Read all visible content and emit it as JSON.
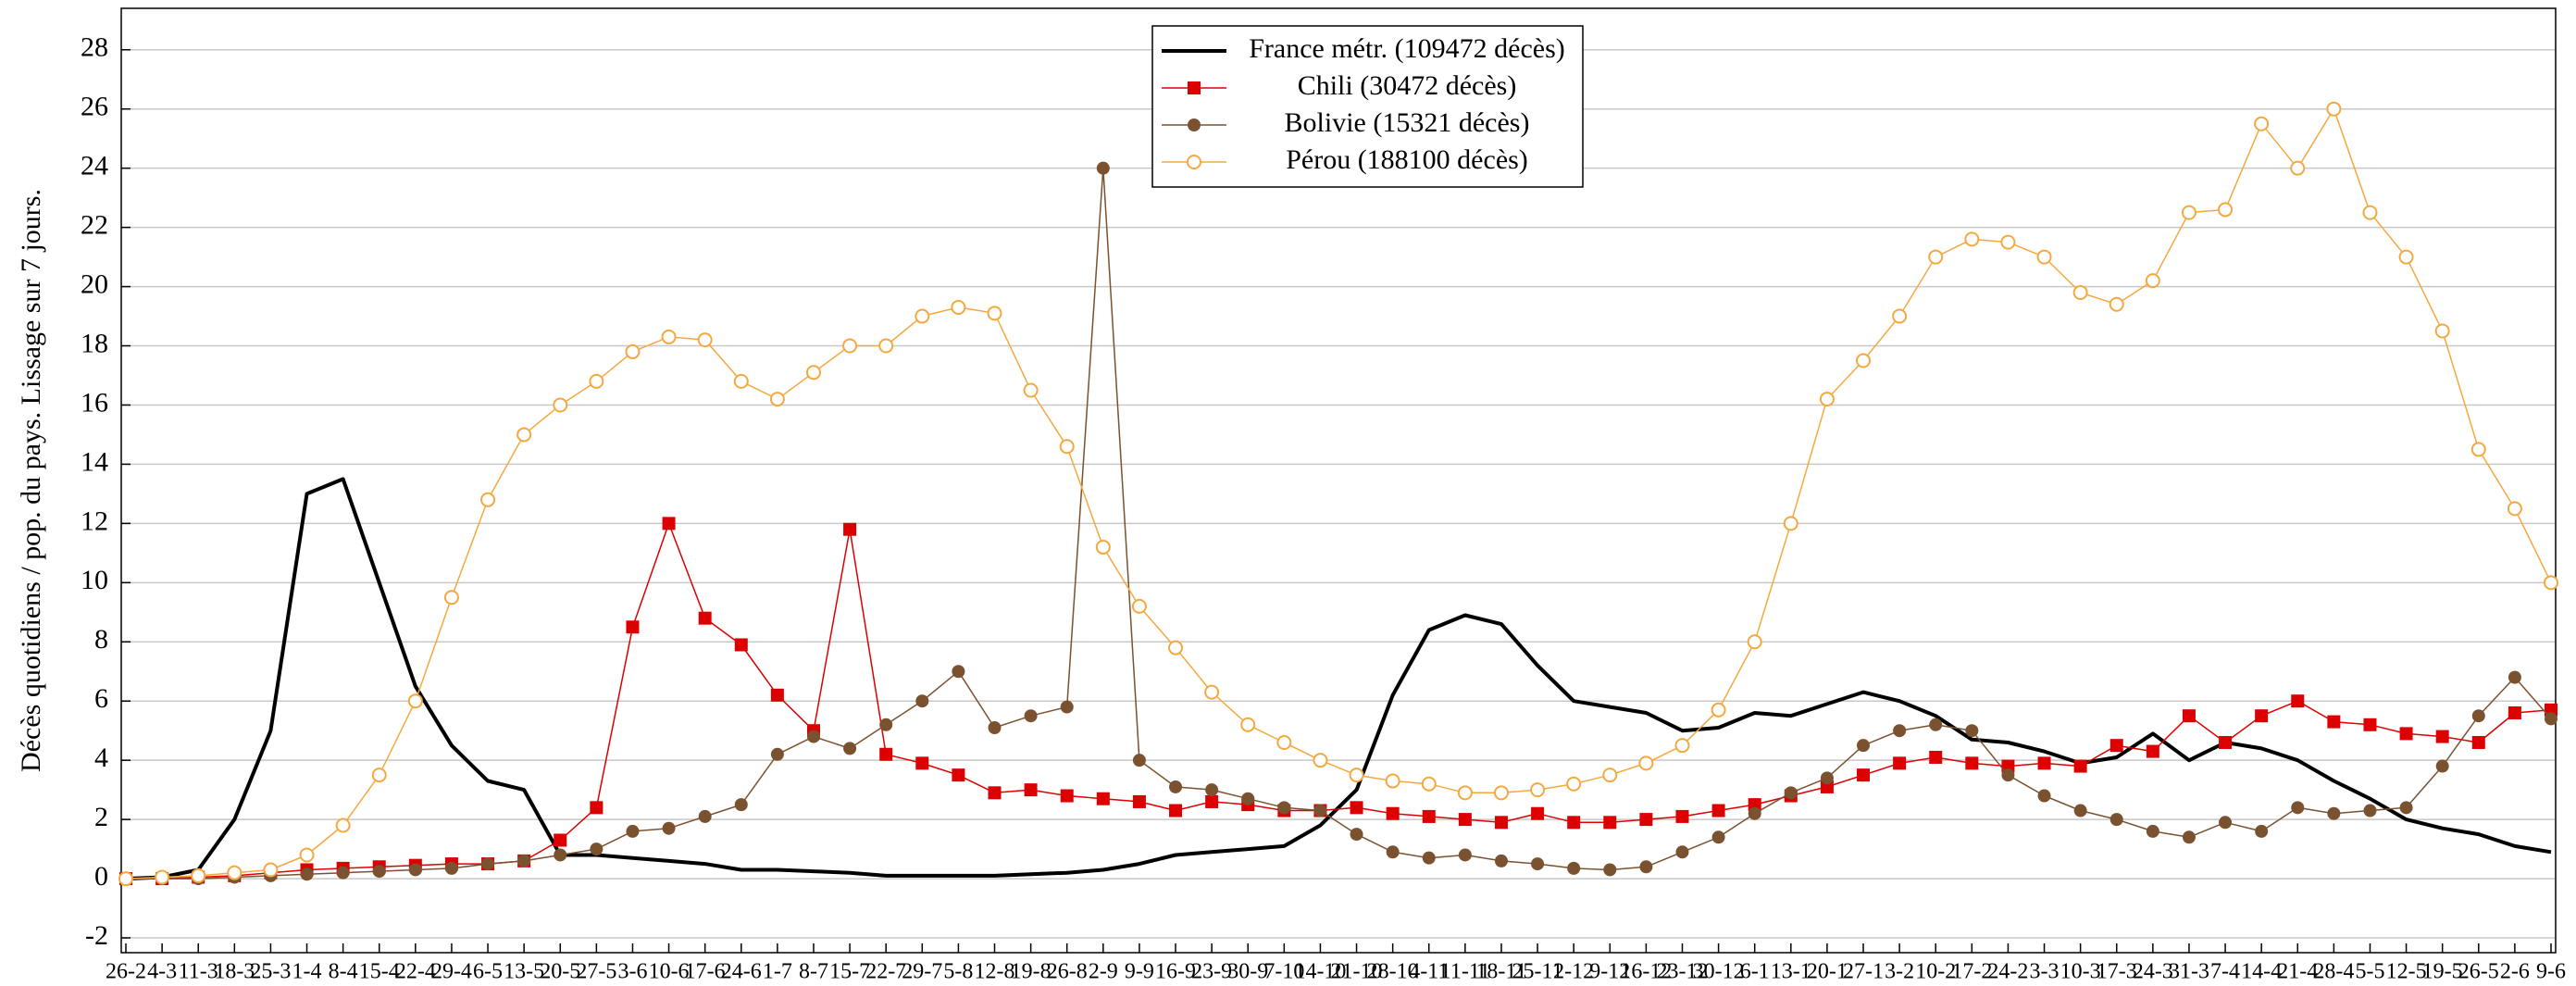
{
  "chart_data": {
    "type": "line",
    "y_label": "Décès quotidiens / pop. du pays. Lissage sur 7 jours.",
    "categories": [
      "26-2",
      "4-3",
      "11-3",
      "18-3",
      "25-3",
      "1-4",
      "8-4",
      "15-4",
      "22-4",
      "29-4",
      "6-5",
      "13-5",
      "20-5",
      "27-5",
      "3-6",
      "10-6",
      "17-6",
      "24-6",
      "1-7",
      "8-7",
      "15-7",
      "22-7",
      "29-7",
      "5-8",
      "12-8",
      "19-8",
      "26-8",
      "2-9",
      "9-9",
      "16-9",
      "23-9",
      "30-9",
      "7-10",
      "14-10",
      "21-10",
      "28-10",
      "4-11",
      "11-11",
      "18-11",
      "25-11",
      "2-12",
      "9-12",
      "16-12",
      "23-12",
      "30-12",
      "6-1",
      "13-1",
      "20-1",
      "27-1",
      "3-2",
      "10-2",
      "17-2",
      "24-2",
      "3-3",
      "10-3",
      "17-3",
      "24-3",
      "31-3",
      "7-4",
      "14-4",
      "21-4",
      "28-4",
      "5-5",
      "12-5",
      "19-5",
      "26-5",
      "2-6",
      "9-6"
    ],
    "series": [
      {
        "name": "France métr. (109472 décès)",
        "color": "#000000",
        "marker": "none",
        "values": [
          0,
          0.05,
          0.3,
          2.0,
          5.0,
          13,
          13.5,
          10,
          6.5,
          4.5,
          3.3,
          3.0,
          0.8,
          0.8,
          0.7,
          0.6,
          0.5,
          0.3,
          0.3,
          0.25,
          0.2,
          0.1,
          0.1,
          0.1,
          0.1,
          0.15,
          0.2,
          0.3,
          0.5,
          0.8,
          0.9,
          1.0,
          1.1,
          1.8,
          3.0,
          6.2,
          8.4,
          8.9,
          8.6,
          7.2,
          6.0,
          5.8,
          5.6,
          5.0,
          5.1,
          5.6,
          5.5,
          5.9,
          6.3,
          6.0,
          5.5,
          4.7,
          4.6,
          4.3,
          3.9,
          4.1,
          4.9,
          4.0,
          4.6,
          4.4,
          4.0,
          3.3,
          2.7,
          2.0,
          1.7,
          1.5,
          1.1,
          0.9
        ]
      },
      {
        "name": "Chili (30472 décès)",
        "color": "#dd0000",
        "marker": "square",
        "values": [
          0,
          0,
          0.05,
          0.1,
          0.2,
          0.3,
          0.35,
          0.4,
          0.45,
          0.5,
          0.5,
          0.6,
          1.3,
          2.4,
          8.5,
          12,
          8.8,
          7.9,
          6.2,
          5.0,
          11.8,
          4.2,
          3.9,
          3.5,
          2.9,
          3.0,
          2.8,
          2.7,
          2.6,
          2.3,
          2.6,
          2.5,
          2.3,
          2.3,
          2.4,
          2.2,
          2.1,
          2.0,
          1.9,
          2.2,
          1.9,
          1.9,
          2.0,
          2.1,
          2.3,
          2.5,
          2.8,
          3.1,
          3.5,
          3.9,
          4.1,
          3.9,
          3.8,
          3.9,
          3.8,
          4.5,
          4.3,
          5.5,
          4.6,
          5.5,
          6.0,
          5.3,
          5.2,
          4.9,
          4.8,
          4.6,
          5.6,
          5.7
        ]
      },
      {
        "name": "Bolivie (15321 décès)",
        "color": "#7a5230",
        "marker": "circle",
        "values": [
          0,
          0,
          0,
          0.05,
          0.1,
          0.15,
          0.2,
          0.25,
          0.3,
          0.35,
          0.5,
          0.6,
          0.8,
          1.0,
          1.6,
          1.7,
          2.1,
          2.5,
          4.2,
          4.8,
          4.4,
          5.2,
          6.0,
          7.0,
          5.1,
          5.5,
          5.8,
          24,
          4.0,
          3.1,
          3.0,
          2.7,
          2.4,
          2.3,
          1.5,
          0.9,
          0.7,
          0.8,
          0.6,
          0.5,
          0.35,
          0.3,
          0.4,
          0.9,
          1.4,
          2.2,
          2.9,
          3.4,
          4.5,
          5.0,
          5.2,
          5.0,
          3.5,
          2.8,
          2.3,
          2.0,
          1.6,
          1.4,
          1.9,
          1.6,
          2.4,
          2.2,
          2.3,
          2.4,
          3.8,
          5.5,
          6.8,
          5.4
        ]
      },
      {
        "name": "Pérou (188100 décès)",
        "color": "#f5a840",
        "marker": "open-circle",
        "values": [
          0,
          0.05,
          0.1,
          0.2,
          0.3,
          0.8,
          1.8,
          3.5,
          6.0,
          9.5,
          12.8,
          15.0,
          16.0,
          16.8,
          17.8,
          18.3,
          18.2,
          16.8,
          16.2,
          17.1,
          18.0,
          18.0,
          19.0,
          19.3,
          19.1,
          16.5,
          14.6,
          11.2,
          9.2,
          7.8,
          6.3,
          5.2,
          4.6,
          4.0,
          3.5,
          3.3,
          3.2,
          2.9,
          2.9,
          3.0,
          3.2,
          3.5,
          3.9,
          4.5,
          5.7,
          8.0,
          12.0,
          16.2,
          17.5,
          19.0,
          21.0,
          21.6,
          21.5,
          21.0,
          19.8,
          19.4,
          20.2,
          22.5,
          22.6,
          25.5,
          24.0,
          26.0,
          22.5,
          21.0,
          18.5,
          14.5,
          12.5,
          10.0
        ]
      }
    ],
    "ylim": [
      -2.5,
      29.4
    ],
    "yticks": [
      -2,
      0,
      2,
      4,
      6,
      8,
      10,
      12,
      14,
      16,
      18,
      20,
      22,
      24,
      26,
      28
    ],
    "grid": true,
    "legend": "top-center"
  }
}
